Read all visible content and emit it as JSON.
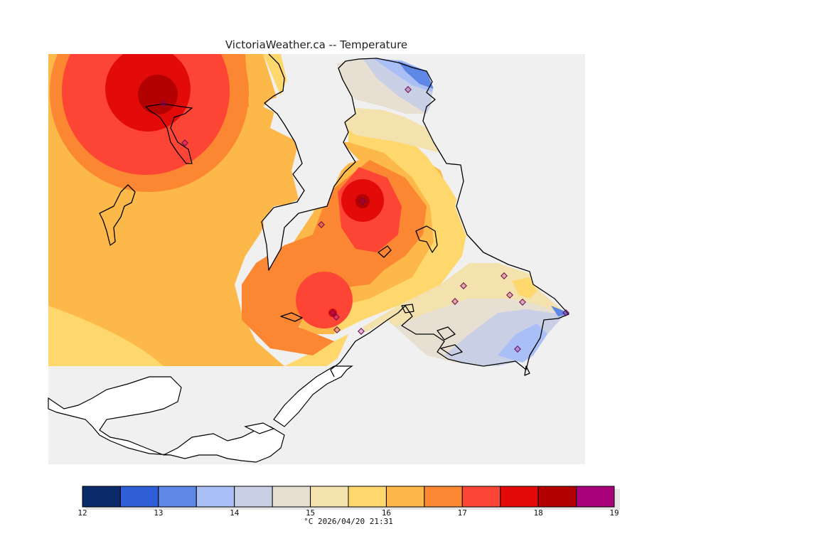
{
  "map": {
    "title": "VictoriaWeather.ca -- Temperature"
  },
  "colorbar": {
    "ticks": [
      "12",
      "13",
      "14",
      "15",
      "16",
      "17",
      "18",
      "19"
    ],
    "colors": [
      "#0a2a6a",
      "#2f5fd6",
      "#5f87e6",
      "#a9bff5",
      "#c9d0e6",
      "#e7e0d2",
      "#f3e2ad",
      "#fed86d",
      "#fdb84a",
      "#fc8733",
      "#fd4535",
      "#e30a0a",
      "#b30000",
      "#a8007a"
    ],
    "unit": "°C",
    "timestamp": "2026/04/20 21:31"
  },
  "stations_count_note": ""
}
